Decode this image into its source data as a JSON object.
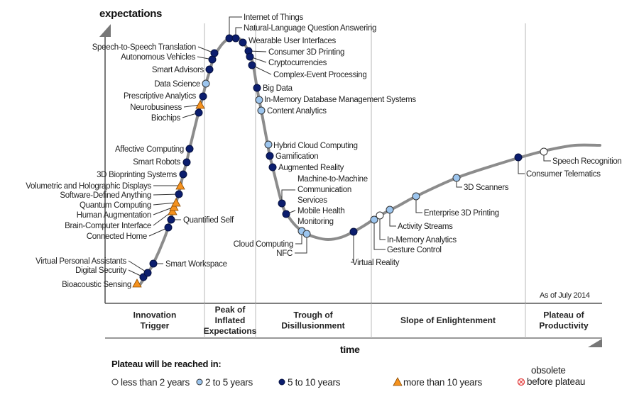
{
  "axes": {
    "y_label": "expectations",
    "x_label": "time"
  },
  "as_of": "As of July 2014",
  "phases": [
    {
      "lines": [
        "Innovation",
        "Trigger"
      ]
    },
    {
      "lines": [
        "Peak of",
        "Inflated",
        "Expectations"
      ]
    },
    {
      "lines": [
        "Trough of",
        "Disillusionment"
      ]
    },
    {
      "lines": [
        "Slope of Enlightenment"
      ]
    },
    {
      "lines": [
        "Plateau of",
        "Productivity"
      ]
    }
  ],
  "legend": {
    "title": "Plateau will be reached in:",
    "items": [
      {
        "key": "lt2",
        "label": "less than 2 years"
      },
      {
        "key": "2to5",
        "label": "2 to 5 years"
      },
      {
        "key": "5to10",
        "label": "5 to 10 years"
      },
      {
        "key": "gt10",
        "label": "more than 10 years"
      },
      {
        "key": "obsolete",
        "label_lines": [
          "obsolete",
          "before plateau"
        ]
      }
    ]
  },
  "colors": {
    "lt2": "#ffffff",
    "2to5": "#9cc5ee",
    "5to10": "#0b1d6e",
    "gt10": "#f5921e",
    "obsolete": "#e23a3a",
    "curve": "#8c8c8c",
    "axis": "#7a7a7a",
    "divider": "#cfcfcf"
  },
  "technologies": [
    {
      "name": [
        "Bioacoustic Sensing"
      ],
      "cat": "gt10"
    },
    {
      "name": [
        "Digital Security"
      ],
      "cat": "5to10"
    },
    {
      "name": [
        "Virtual Personal Assistants"
      ],
      "cat": "5to10"
    },
    {
      "name": [
        "Smart Workspace"
      ],
      "cat": "5to10"
    },
    {
      "name": [
        "Connected Home"
      ],
      "cat": "5to10"
    },
    {
      "name": [
        "Quantified Self"
      ],
      "cat": "5to10"
    },
    {
      "name": [
        "Brain-Computer Interface"
      ],
      "cat": "gt10"
    },
    {
      "name": [
        "Human Augmentation"
      ],
      "cat": "gt10"
    },
    {
      "name": [
        "Quantum Computing"
      ],
      "cat": "gt10"
    },
    {
      "name": [
        "Software-Defined Anything"
      ],
      "cat": "5to10"
    },
    {
      "name": [
        "Volumetric and Holographic Displays"
      ],
      "cat": "gt10"
    },
    {
      "name": [
        "3D Bioprinting Systems"
      ],
      "cat": "5to10"
    },
    {
      "name": [
        "Smart Robots"
      ],
      "cat": "5to10"
    },
    {
      "name": [
        "Affective  Computing"
      ],
      "cat": "5to10"
    },
    {
      "name": [
        "Biochips"
      ],
      "cat": "5to10"
    },
    {
      "name": [
        "Neurobusiness"
      ],
      "cat": "gt10"
    },
    {
      "name": [
        "Prescriptive Analytics"
      ],
      "cat": "5to10"
    },
    {
      "name": [
        "Data Science"
      ],
      "cat": "2to5"
    },
    {
      "name": [
        "Smart Advisors"
      ],
      "cat": "5to10"
    },
    {
      "name": [
        "Autonomous Vehicles"
      ],
      "cat": "5to10"
    },
    {
      "name": [
        "Speech-to-Speech Translation"
      ],
      "cat": "5to10"
    },
    {
      "name": [
        "Internet of Things"
      ],
      "cat": "5to10"
    },
    {
      "name": [
        "Natural-Language Question Answering"
      ],
      "cat": "5to10"
    },
    {
      "name": [
        "Wearable User Interfaces"
      ],
      "cat": "5to10"
    },
    {
      "name": [
        "Consumer 3D Printing"
      ],
      "cat": "5to10"
    },
    {
      "name": [
        "Cryptocurrencies"
      ],
      "cat": "5to10"
    },
    {
      "name": [
        "Complex-Event Processing"
      ],
      "cat": "5to10"
    },
    {
      "name": [
        "Big Data"
      ],
      "cat": "5to10"
    },
    {
      "name": [
        "In-Memory Database Management Systems"
      ],
      "cat": "2to5"
    },
    {
      "name": [
        "Content Analytics"
      ],
      "cat": "2to5"
    },
    {
      "name": [
        "Hybrid Cloud Computing"
      ],
      "cat": "2to5"
    },
    {
      "name": [
        "Gamification"
      ],
      "cat": "5to10"
    },
    {
      "name": [
        "Augmented Reality"
      ],
      "cat": "5to10"
    },
    {
      "name": [
        "Machine-to-Machine",
        "Communication",
        "Services"
      ],
      "cat": "5to10"
    },
    {
      "name": [
        "Mobile Health",
        "Monitoring"
      ],
      "cat": "5to10"
    },
    {
      "name": [
        "Cloud Computing"
      ],
      "cat": "2to5"
    },
    {
      "name": [
        "NFC"
      ],
      "cat": "2to5"
    },
    {
      "name": [
        "Virtual Reality"
      ],
      "cat": "5to10"
    },
    {
      "name": [
        "Gesture Control"
      ],
      "cat": "2to5"
    },
    {
      "name": [
        "In-Memory Analytics"
      ],
      "cat": "lt2"
    },
    {
      "name": [
        "Activity  Streams"
      ],
      "cat": "2to5"
    },
    {
      "name": [
        "Enterprise 3D Printing"
      ],
      "cat": "2to5"
    },
    {
      "name": [
        "3D Scanners"
      ],
      "cat": "2to5"
    },
    {
      "name": [
        "Consumer Telematics"
      ],
      "cat": "5to10"
    },
    {
      "name": [
        "Speech Recognition"
      ],
      "cat": "lt2"
    }
  ]
}
